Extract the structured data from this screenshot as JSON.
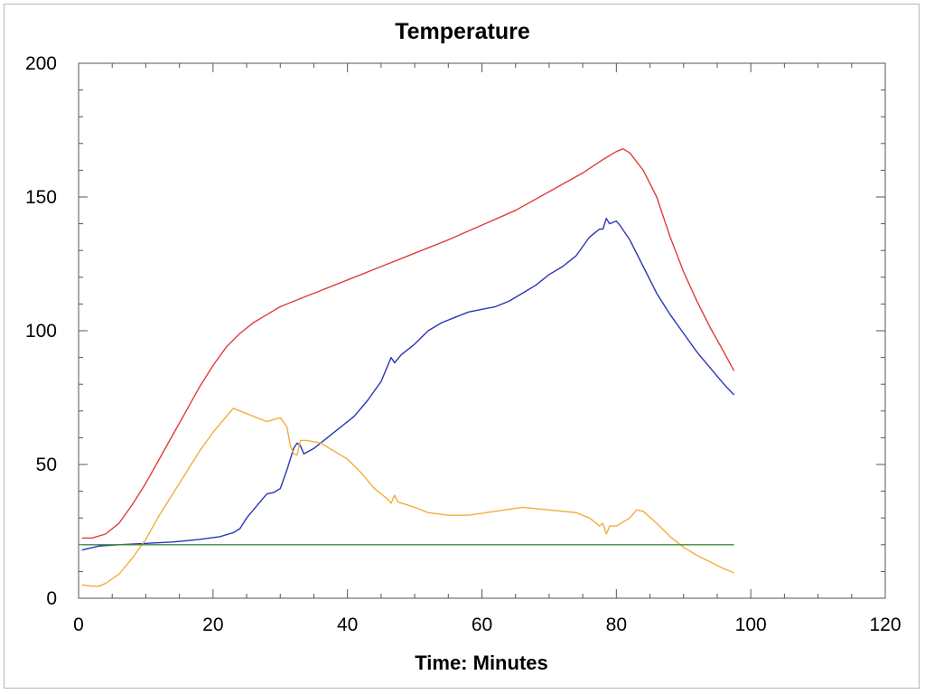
{
  "chart_data": {
    "type": "line",
    "title": "Temperature",
    "xlabel": "Time: Minutes",
    "ylabel": "",
    "xlim": [
      0,
      120
    ],
    "ylim": [
      0,
      200
    ],
    "x_ticks": [
      "0",
      "20",
      "40",
      "60",
      "80",
      "100",
      "120"
    ],
    "y_ticks": [
      "0",
      "50",
      "100",
      "150",
      "200"
    ],
    "grid": false,
    "legend": "none",
    "series": [
      {
        "color": "#e03c3c",
        "points": [
          [
            0.5,
            22.5
          ],
          [
            2,
            22.5
          ],
          [
            4,
            24
          ],
          [
            6,
            28
          ],
          [
            8,
            35
          ],
          [
            10,
            43
          ],
          [
            12,
            52
          ],
          [
            14,
            61
          ],
          [
            16,
            70
          ],
          [
            18,
            79
          ],
          [
            20,
            87
          ],
          [
            22,
            94
          ],
          [
            24,
            99
          ],
          [
            26,
            103
          ],
          [
            28,
            106
          ],
          [
            30,
            109
          ],
          [
            32,
            111
          ],
          [
            34,
            113
          ],
          [
            36,
            115
          ],
          [
            38,
            117
          ],
          [
            40,
            119
          ],
          [
            45,
            124
          ],
          [
            50,
            129
          ],
          [
            55,
            134
          ],
          [
            60,
            139.5
          ],
          [
            65,
            145
          ],
          [
            70,
            152
          ],
          [
            75,
            159
          ],
          [
            78,
            164
          ],
          [
            80,
            167
          ],
          [
            81,
            168
          ],
          [
            82,
            166.5
          ],
          [
            84,
            160
          ],
          [
            86,
            150
          ],
          [
            88,
            135
          ],
          [
            90,
            122
          ],
          [
            92,
            111
          ],
          [
            94,
            101
          ],
          [
            96,
            92
          ],
          [
            97.5,
            85
          ]
        ]
      },
      {
        "color": "#2a35b8",
        "points": [
          [
            0.5,
            18
          ],
          [
            3,
            19.5
          ],
          [
            6,
            20
          ],
          [
            10,
            20.5
          ],
          [
            14,
            21
          ],
          [
            18,
            22
          ],
          [
            21,
            23
          ],
          [
            23,
            24.5
          ],
          [
            24,
            26
          ],
          [
            25,
            30
          ],
          [
            26,
            33
          ],
          [
            27,
            36
          ],
          [
            28,
            39
          ],
          [
            29,
            39.5
          ],
          [
            30,
            41
          ],
          [
            31,
            48
          ],
          [
            32,
            56
          ],
          [
            32.5,
            58
          ],
          [
            33,
            57
          ],
          [
            33.5,
            54
          ],
          [
            35,
            56
          ],
          [
            37,
            60
          ],
          [
            39,
            64
          ],
          [
            41,
            68
          ],
          [
            43,
            74
          ],
          [
            45,
            81
          ],
          [
            46.5,
            90
          ],
          [
            47,
            88
          ],
          [
            48,
            91
          ],
          [
            50,
            95
          ],
          [
            52,
            100
          ],
          [
            54,
            103
          ],
          [
            56,
            105
          ],
          [
            58,
            107
          ],
          [
            60,
            108
          ],
          [
            62,
            109
          ],
          [
            64,
            111
          ],
          [
            66,
            114
          ],
          [
            68,
            117
          ],
          [
            70,
            121
          ],
          [
            72,
            124
          ],
          [
            74,
            128
          ],
          [
            76,
            135
          ],
          [
            77.5,
            138
          ],
          [
            78,
            138
          ],
          [
            78.5,
            142
          ],
          [
            79,
            140
          ],
          [
            80,
            141
          ],
          [
            80.5,
            139.5
          ],
          [
            82,
            134
          ],
          [
            84,
            124
          ],
          [
            86,
            114
          ],
          [
            88,
            106
          ],
          [
            90,
            99
          ],
          [
            92,
            92
          ],
          [
            94,
            86
          ],
          [
            96,
            80
          ],
          [
            97.5,
            76
          ]
        ]
      },
      {
        "color": "#f2ae3c",
        "points": [
          [
            0.5,
            5
          ],
          [
            2,
            4.5
          ],
          [
            3,
            4.5
          ],
          [
            4,
            5.5
          ],
          [
            6,
            9
          ],
          [
            8,
            15
          ],
          [
            10,
            22
          ],
          [
            12,
            31
          ],
          [
            14,
            39
          ],
          [
            16,
            47
          ],
          [
            18,
            55
          ],
          [
            20,
            62
          ],
          [
            22,
            68
          ],
          [
            23,
            71
          ],
          [
            24,
            70
          ],
          [
            26,
            68
          ],
          [
            28,
            66
          ],
          [
            30,
            67.5
          ],
          [
            31,
            64
          ],
          [
            31.5,
            57
          ],
          [
            32,
            54
          ],
          [
            32.5,
            53.5
          ],
          [
            33,
            59
          ],
          [
            34,
            59
          ],
          [
            36,
            58
          ],
          [
            38,
            55
          ],
          [
            40,
            52
          ],
          [
            42,
            47
          ],
          [
            44,
            41
          ],
          [
            46,
            37
          ],
          [
            46.5,
            35.5
          ],
          [
            47,
            38.5
          ],
          [
            47.5,
            36
          ],
          [
            50,
            34
          ],
          [
            52,
            32
          ],
          [
            55,
            31
          ],
          [
            58,
            31
          ],
          [
            62,
            32.5
          ],
          [
            66,
            34
          ],
          [
            70,
            33
          ],
          [
            74,
            32
          ],
          [
            76,
            30
          ],
          [
            77.5,
            27
          ],
          [
            78,
            28
          ],
          [
            78.5,
            24
          ],
          [
            79,
            27
          ],
          [
            80,
            27
          ],
          [
            82,
            30
          ],
          [
            83,
            33
          ],
          [
            84,
            32.5
          ],
          [
            86,
            28
          ],
          [
            88,
            23
          ],
          [
            90,
            19
          ],
          [
            92,
            16
          ],
          [
            94,
            13.5
          ],
          [
            96,
            11
          ],
          [
            97.5,
            9.5
          ]
        ]
      },
      {
        "color": "#3c8a3c",
        "points": [
          [
            0.5,
            20
          ],
          [
            97.5,
            20
          ]
        ]
      }
    ]
  }
}
